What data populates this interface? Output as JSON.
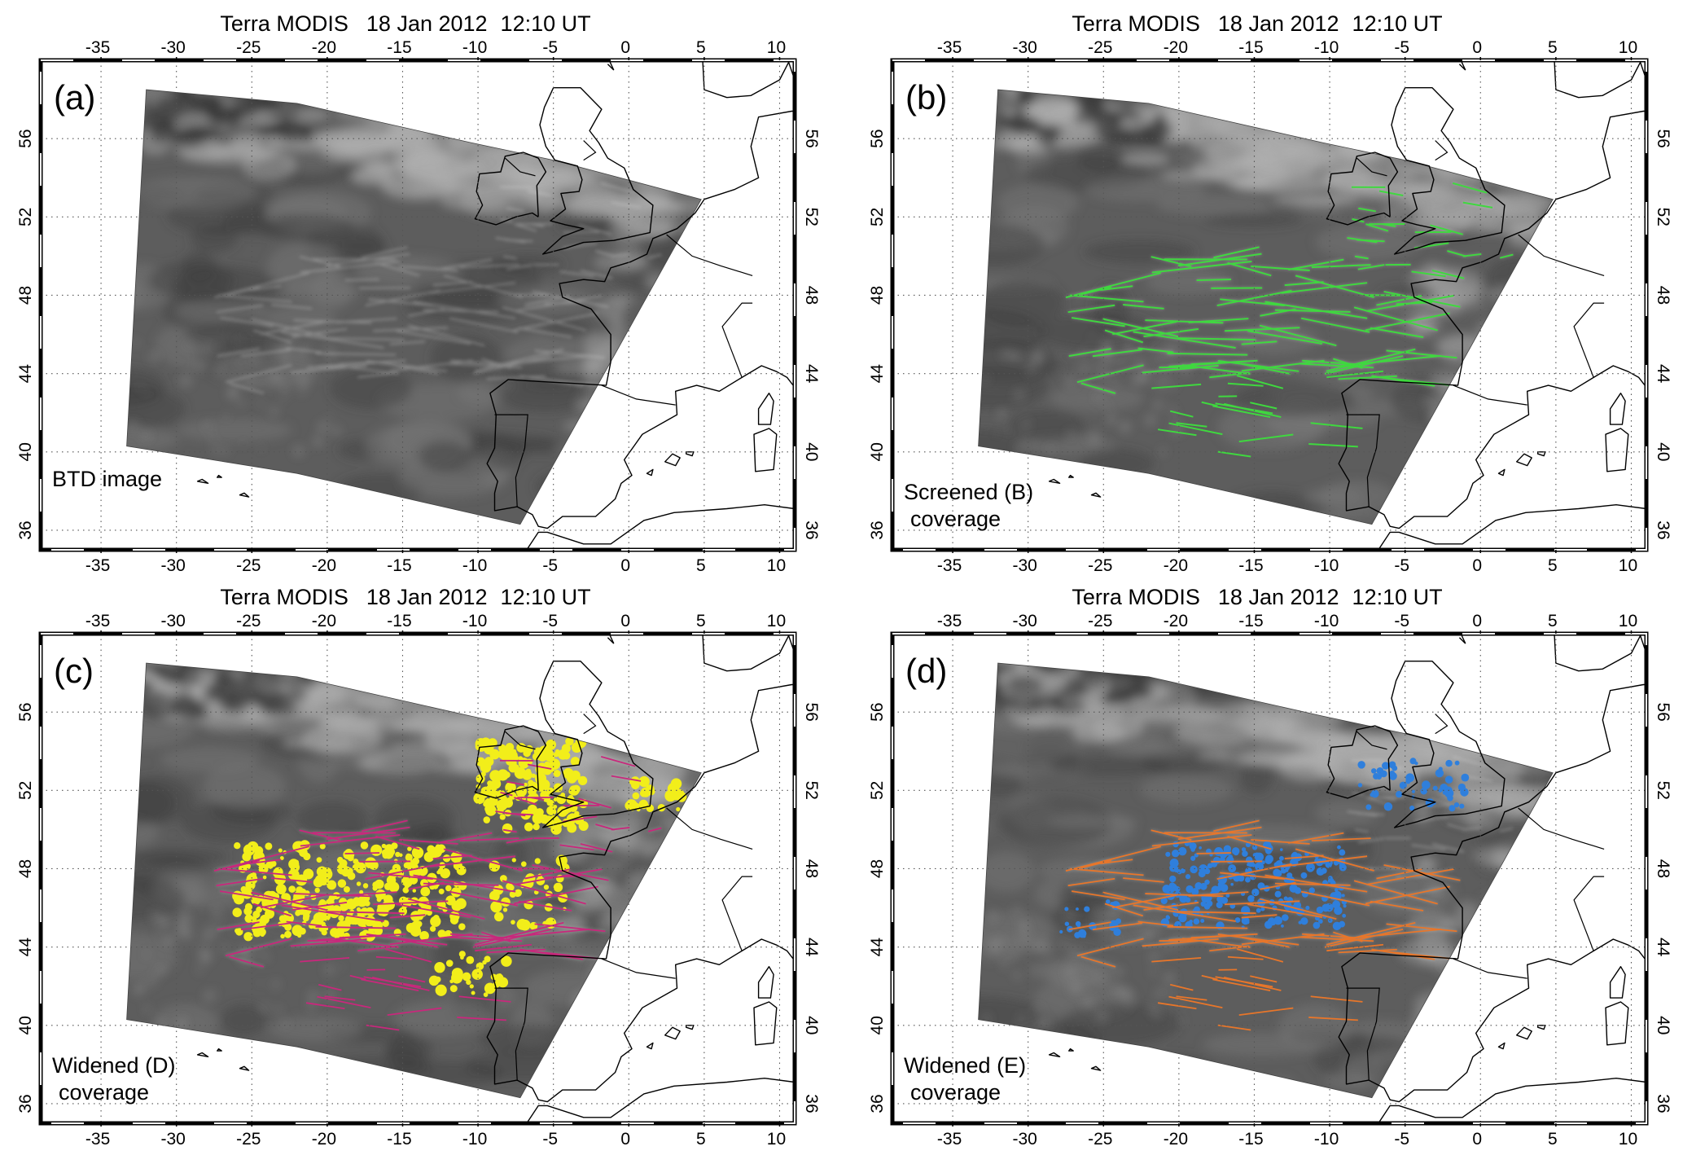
{
  "figure": {
    "title_parts": [
      "Terra MODIS",
      "18 Jan 2012",
      "12:10 UT"
    ]
  },
  "panels": [
    {
      "id": "a",
      "letter": "(a)",
      "caption": [
        "BTD image"
      ],
      "overlay": "none"
    },
    {
      "id": "b",
      "letter": "(b)",
      "caption": [
        "Screened (B)",
        "coverage"
      ],
      "overlay": "screened"
    },
    {
      "id": "c",
      "letter": "(c)",
      "caption": [
        "Widened (D)",
        "coverage"
      ],
      "overlay": "widened_d"
    },
    {
      "id": "d",
      "letter": "(d)",
      "caption": [
        "Widened (E)",
        "coverage"
      ],
      "overlay": "widened_e"
    }
  ],
  "axes": {
    "lon_ticks": [
      "-35",
      "-30",
      "-25",
      "-20",
      "-15",
      "-10",
      "-5",
      "0",
      "5",
      "10"
    ],
    "lat_ticks": [
      "36",
      "40",
      "44",
      "48",
      "52",
      "56"
    ],
    "lon_range": [
      -39,
      11
    ],
    "lat_range": [
      35,
      60
    ]
  },
  "colors": {
    "screened_contrail": "#3fd83f",
    "widened_d_primary": "#f2ee1a",
    "widened_d_secondary": "#c8287c",
    "widened_e_primary": "#2f7fdc",
    "widened_e_secondary": "#e8762a",
    "coastline": "#000000",
    "grid": "#555555"
  }
}
